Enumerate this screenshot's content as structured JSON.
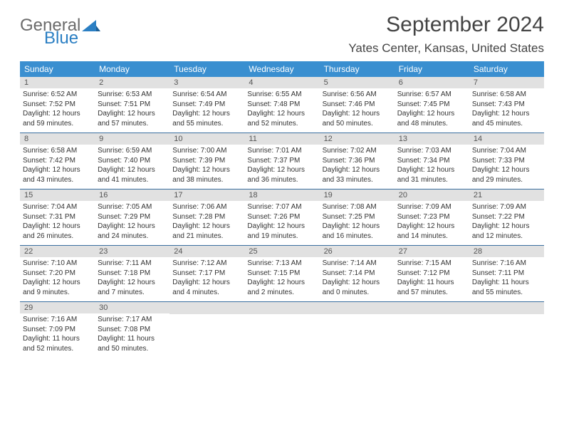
{
  "logo": {
    "word1": "General",
    "word2": "Blue"
  },
  "title": "September 2024",
  "location": "Yates Center, Kansas, United States",
  "day_names": [
    "Sunday",
    "Monday",
    "Tuesday",
    "Wednesday",
    "Thursday",
    "Friday",
    "Saturday"
  ],
  "colors": {
    "header_bg": "#3a8fd0",
    "header_text": "#ffffff",
    "daynum_bg": "#e1e1e1",
    "week_border": "#3a6fa0",
    "logo_gray": "#6b6b6b",
    "logo_blue": "#2b7fc3"
  },
  "weeks": [
    [
      {
        "day": "1",
        "sunrise": "6:52 AM",
        "sunset": "7:52 PM",
        "dl_h": "12",
        "dl_m": "59"
      },
      {
        "day": "2",
        "sunrise": "6:53 AM",
        "sunset": "7:51 PM",
        "dl_h": "12",
        "dl_m": "57"
      },
      {
        "day": "3",
        "sunrise": "6:54 AM",
        "sunset": "7:49 PM",
        "dl_h": "12",
        "dl_m": "55"
      },
      {
        "day": "4",
        "sunrise": "6:55 AM",
        "sunset": "7:48 PM",
        "dl_h": "12",
        "dl_m": "52"
      },
      {
        "day": "5",
        "sunrise": "6:56 AM",
        "sunset": "7:46 PM",
        "dl_h": "12",
        "dl_m": "50"
      },
      {
        "day": "6",
        "sunrise": "6:57 AM",
        "sunset": "7:45 PM",
        "dl_h": "12",
        "dl_m": "48"
      },
      {
        "day": "7",
        "sunrise": "6:58 AM",
        "sunset": "7:43 PM",
        "dl_h": "12",
        "dl_m": "45"
      }
    ],
    [
      {
        "day": "8",
        "sunrise": "6:58 AM",
        "sunset": "7:42 PM",
        "dl_h": "12",
        "dl_m": "43"
      },
      {
        "day": "9",
        "sunrise": "6:59 AM",
        "sunset": "7:40 PM",
        "dl_h": "12",
        "dl_m": "41"
      },
      {
        "day": "10",
        "sunrise": "7:00 AM",
        "sunset": "7:39 PM",
        "dl_h": "12",
        "dl_m": "38"
      },
      {
        "day": "11",
        "sunrise": "7:01 AM",
        "sunset": "7:37 PM",
        "dl_h": "12",
        "dl_m": "36"
      },
      {
        "day": "12",
        "sunrise": "7:02 AM",
        "sunset": "7:36 PM",
        "dl_h": "12",
        "dl_m": "33"
      },
      {
        "day": "13",
        "sunrise": "7:03 AM",
        "sunset": "7:34 PM",
        "dl_h": "12",
        "dl_m": "31"
      },
      {
        "day": "14",
        "sunrise": "7:04 AM",
        "sunset": "7:33 PM",
        "dl_h": "12",
        "dl_m": "29"
      }
    ],
    [
      {
        "day": "15",
        "sunrise": "7:04 AM",
        "sunset": "7:31 PM",
        "dl_h": "12",
        "dl_m": "26"
      },
      {
        "day": "16",
        "sunrise": "7:05 AM",
        "sunset": "7:29 PM",
        "dl_h": "12",
        "dl_m": "24"
      },
      {
        "day": "17",
        "sunrise": "7:06 AM",
        "sunset": "7:28 PM",
        "dl_h": "12",
        "dl_m": "21"
      },
      {
        "day": "18",
        "sunrise": "7:07 AM",
        "sunset": "7:26 PM",
        "dl_h": "12",
        "dl_m": "19"
      },
      {
        "day": "19",
        "sunrise": "7:08 AM",
        "sunset": "7:25 PM",
        "dl_h": "12",
        "dl_m": "16"
      },
      {
        "day": "20",
        "sunrise": "7:09 AM",
        "sunset": "7:23 PM",
        "dl_h": "12",
        "dl_m": "14"
      },
      {
        "day": "21",
        "sunrise": "7:09 AM",
        "sunset": "7:22 PM",
        "dl_h": "12",
        "dl_m": "12"
      }
    ],
    [
      {
        "day": "22",
        "sunrise": "7:10 AM",
        "sunset": "7:20 PM",
        "dl_h": "12",
        "dl_m": "9"
      },
      {
        "day": "23",
        "sunrise": "7:11 AM",
        "sunset": "7:18 PM",
        "dl_h": "12",
        "dl_m": "7"
      },
      {
        "day": "24",
        "sunrise": "7:12 AM",
        "sunset": "7:17 PM",
        "dl_h": "12",
        "dl_m": "4"
      },
      {
        "day": "25",
        "sunrise": "7:13 AM",
        "sunset": "7:15 PM",
        "dl_h": "12",
        "dl_m": "2"
      },
      {
        "day": "26",
        "sunrise": "7:14 AM",
        "sunset": "7:14 PM",
        "dl_h": "12",
        "dl_m": "0"
      },
      {
        "day": "27",
        "sunrise": "7:15 AM",
        "sunset": "7:12 PM",
        "dl_h": "11",
        "dl_m": "57"
      },
      {
        "day": "28",
        "sunrise": "7:16 AM",
        "sunset": "7:11 PM",
        "dl_h": "11",
        "dl_m": "55"
      }
    ],
    [
      {
        "day": "29",
        "sunrise": "7:16 AM",
        "sunset": "7:09 PM",
        "dl_h": "11",
        "dl_m": "52"
      },
      {
        "day": "30",
        "sunrise": "7:17 AM",
        "sunset": "7:08 PM",
        "dl_h": "11",
        "dl_m": "50"
      },
      null,
      null,
      null,
      null,
      null
    ]
  ]
}
